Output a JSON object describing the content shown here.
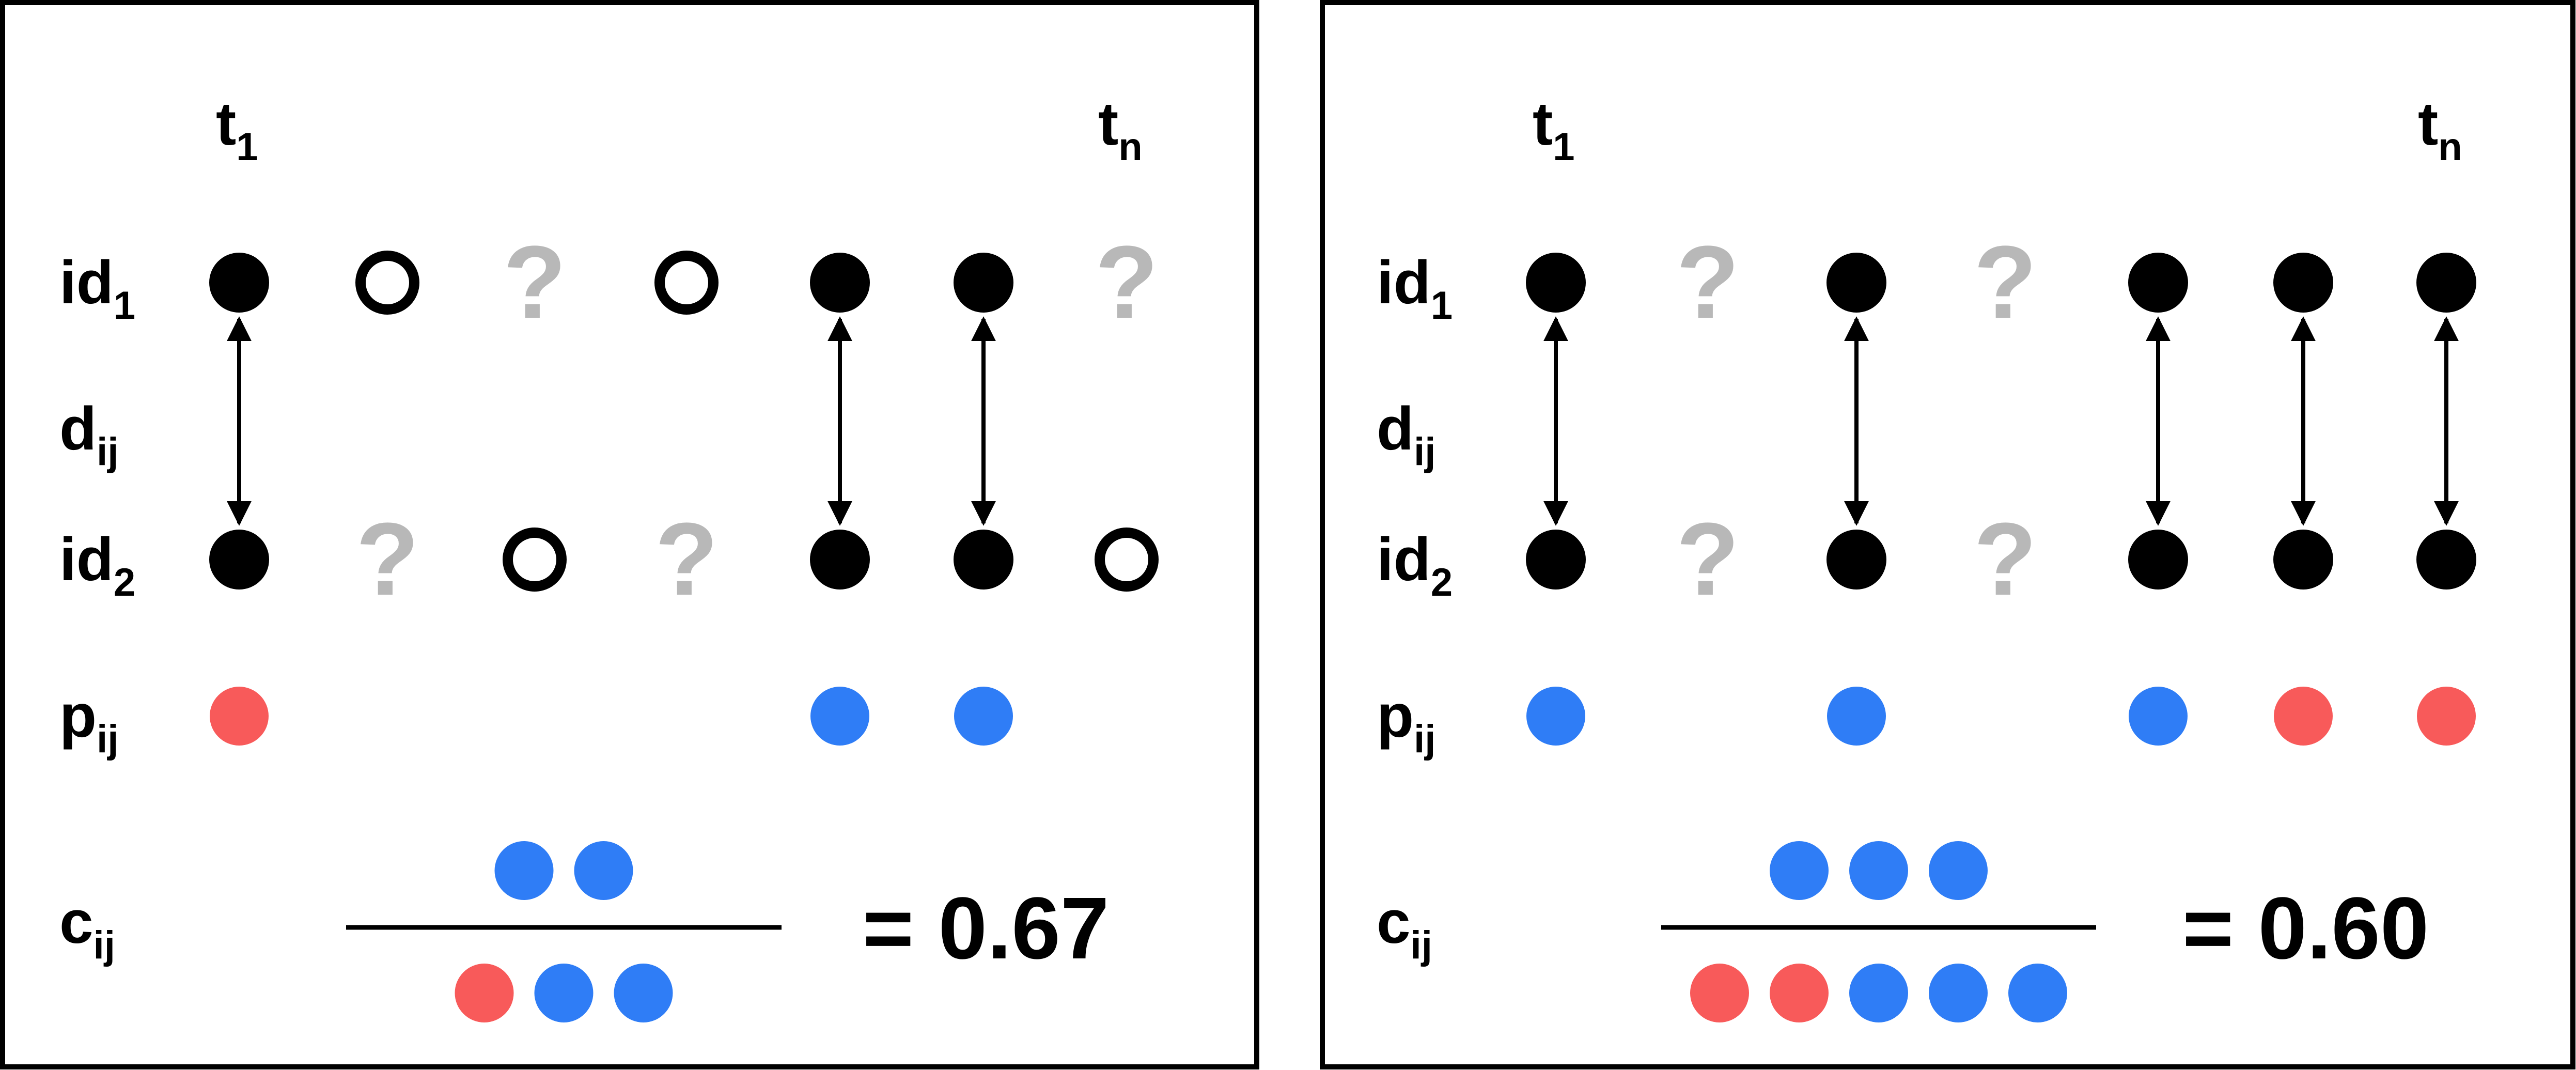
{
  "colors": {
    "filled": "#000000",
    "missing": "#b8b8b8",
    "positive": "#2f7df6",
    "negative": "#f85a5a"
  },
  "labels": {
    "t1": {
      "base": "t",
      "sub": "1"
    },
    "tn": {
      "base": "t",
      "sub": "n"
    },
    "id1": {
      "base": "id",
      "sub": "1"
    },
    "dij": {
      "base": "d",
      "sub": "ij"
    },
    "id2": {
      "base": "id",
      "sub": "2"
    },
    "pij": {
      "base": "p",
      "sub": "ij"
    },
    "cij": {
      "base": "c",
      "sub": "ij"
    }
  },
  "question_mark": "?",
  "panels": [
    {
      "id1": [
        "filled",
        "open",
        "missing",
        "open",
        "filled",
        "filled",
        "missing"
      ],
      "id2": [
        "filled",
        "missing",
        "open",
        "missing",
        "filled",
        "filled",
        "open"
      ],
      "arrows": [
        true,
        false,
        false,
        false,
        true,
        true,
        false
      ],
      "pij": [
        "negative",
        null,
        null,
        null,
        "positive",
        "positive",
        null
      ],
      "numerator": [
        "positive",
        "positive"
      ],
      "denominator": [
        "negative",
        "positive",
        "positive"
      ],
      "result": "= 0.67"
    },
    {
      "id1": [
        "filled",
        "missing",
        "filled",
        "missing",
        "filled",
        "filled",
        "filled"
      ],
      "id2": [
        "filled",
        "missing",
        "filled",
        "missing",
        "filled",
        "filled",
        "filled"
      ],
      "arrows": [
        true,
        false,
        true,
        false,
        true,
        true,
        true
      ],
      "pij": [
        "positive",
        null,
        "positive",
        null,
        "positive",
        "negative",
        "negative"
      ],
      "numerator": [
        "positive",
        "positive",
        "positive"
      ],
      "denominator": [
        "negative",
        "negative",
        "positive",
        "positive",
        "positive"
      ],
      "result": "= 0.60"
    }
  ]
}
